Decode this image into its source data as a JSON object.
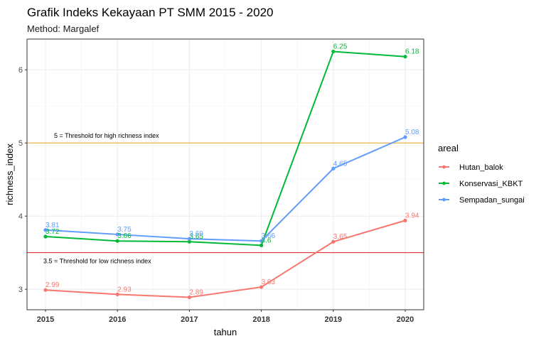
{
  "chart_data": {
    "type": "line",
    "title": "Grafik Indeks Kekayaan PT SMM 2015 - 2020",
    "subtitle": "Method: Margalef",
    "xlabel": "tahun",
    "ylabel": "richness_index",
    "x": [
      "2015",
      "2016",
      "2017",
      "2018",
      "2019",
      "2020"
    ],
    "ylim": [
      2.72,
      6.42
    ],
    "y_ticks": [
      "3",
      "4",
      "5",
      "6"
    ],
    "grid": true,
    "legend_title": "areal",
    "legend_position": "right",
    "series": [
      {
        "name": "Hutan_balok",
        "color": "#F8766D",
        "values": [
          2.99,
          2.93,
          2.89,
          3.03,
          3.65,
          3.94
        ],
        "labels": [
          "2.99",
          "2.93",
          "2.89",
          "3.03",
          "3.65",
          "3.94"
        ]
      },
      {
        "name": "Konservasi_KBKT",
        "color": "#00BA38",
        "values": [
          3.72,
          3.66,
          3.65,
          3.6,
          6.25,
          6.18
        ],
        "labels": [
          "3.72",
          "3.66",
          "3.65",
          "3.6",
          "6.25",
          "6.18"
        ]
      },
      {
        "name": "Sempadan_sungai",
        "color": "#619CFF",
        "values": [
          3.81,
          3.75,
          3.69,
          3.66,
          4.65,
          5.08
        ],
        "labels": [
          "3.81",
          "3.75",
          "3.69",
          "3.66",
          "4.65",
          "5.08"
        ]
      }
    ],
    "thresholds": [
      {
        "value": 5,
        "label": "5 = Threshold for high richness index",
        "color": "#F5A623"
      },
      {
        "value": 3.5,
        "label": "3.5 = Threshold for low richness index",
        "color": "#E41A1C"
      }
    ]
  }
}
